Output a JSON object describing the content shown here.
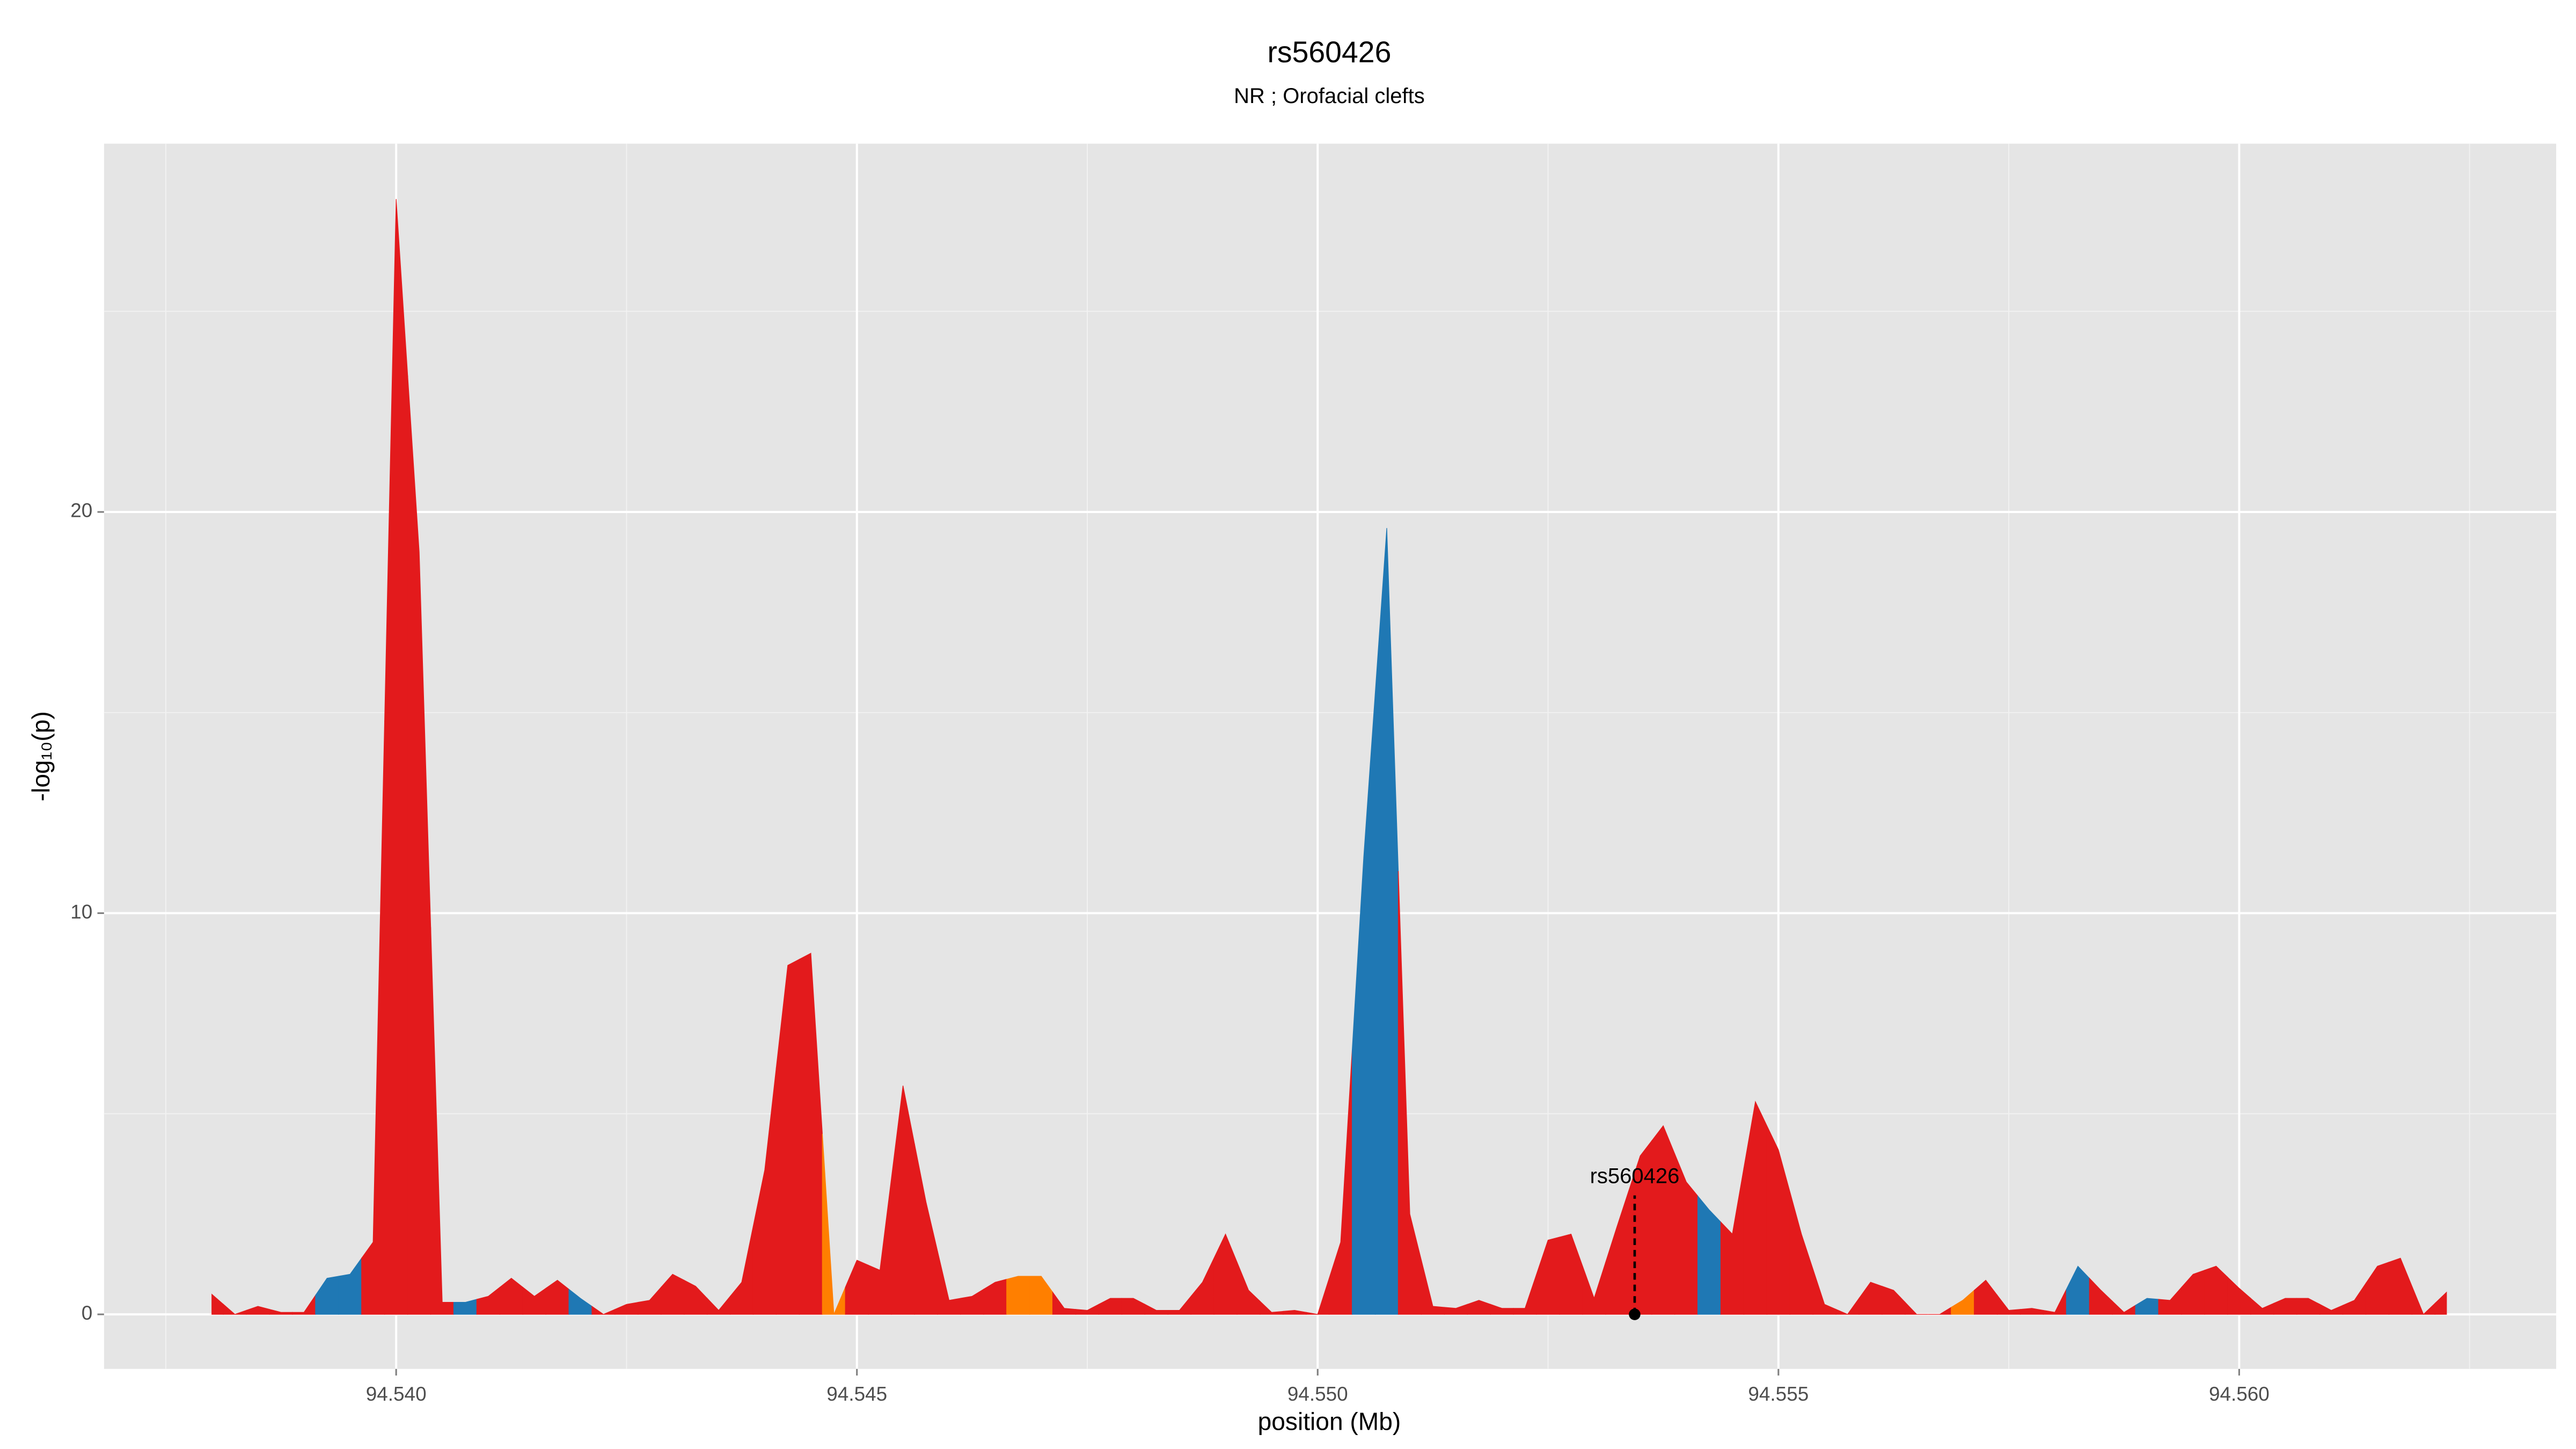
{
  "chart_data": {
    "type": "area",
    "title": "rs560426",
    "subtitle": "NR ; Orofacial clefts",
    "x_label": "position (Mb)",
    "y_label": "-log₁₀(p)",
    "x": [
      94.538,
      94.53825,
      94.5385,
      94.53875,
      94.539,
      94.53925,
      94.5395,
      94.53975,
      94.54,
      94.54025,
      94.5405,
      94.54075,
      94.541,
      94.54125,
      94.5415,
      94.54175,
      94.542,
      94.54225,
      94.5425,
      94.54275,
      94.543,
      94.54325,
      94.5435,
      94.54375,
      94.544,
      94.54425,
      94.5445,
      94.54475,
      94.545,
      94.54525,
      94.5455,
      94.54575,
      94.546,
      94.54625,
      94.5465,
      94.54675,
      94.547,
      94.54725,
      94.5475,
      94.54775,
      94.548,
      94.54825,
      94.5485,
      94.54875,
      94.549,
      94.54925,
      94.5495,
      94.54975,
      94.55,
      94.55025,
      94.5505,
      94.55075,
      94.551,
      94.55125,
      94.5515,
      94.55175,
      94.552,
      94.55225,
      94.5525,
      94.55275,
      94.553,
      94.55325,
      94.5535,
      94.55375,
      94.554,
      94.55425,
      94.5545,
      94.55475,
      94.555,
      94.55525,
      94.5555,
      94.55575,
      94.556,
      94.55625,
      94.5565,
      94.55675,
      94.557,
      94.55725,
      94.5575,
      94.55775,
      94.558,
      94.55825,
      94.5585,
      94.55875,
      94.559,
      94.55925,
      94.5595,
      94.55975,
      94.56,
      94.56025,
      94.5605,
      94.56075,
      94.561,
      94.56125,
      94.5615,
      94.56175,
      94.562,
      94.56225
    ],
    "values": [
      0.5,
      0,
      0.2,
      0.05,
      0.05,
      0.9,
      1.0,
      1.8,
      27.8,
      19.0,
      0.3,
      0.3,
      0.45,
      0.9,
      0.45,
      0.85,
      0.4,
      0,
      0.25,
      0.35,
      1.0,
      0.7,
      0.1,
      0.8,
      3.6,
      8.7,
      9.0,
      0,
      1.35,
      1.1,
      5.7,
      2.8,
      0.35,
      0.45,
      0.8,
      0.95,
      0.95,
      0.15,
      0.1,
      0.4,
      0.4,
      0.1,
      0.1,
      0.8,
      2.0,
      0.6,
      0.05,
      0.1,
      0,
      1.8,
      11.4,
      19.6,
      2.5,
      0.2,
      0.15,
      0.35,
      0.15,
      0.15,
      1.85,
      2.0,
      0.4,
      2.2,
      3.95,
      4.7,
      3.3,
      2.6,
      2.0,
      5.3,
      4.1,
      2.0,
      0.25,
      0,
      0.8,
      0.6,
      0,
      0,
      0.35,
      0.85,
      0.1,
      0.15,
      0.05,
      1.2,
      0.6,
      0.05,
      0.4,
      0.35,
      1.0,
      1.2,
      0.65,
      0.15,
      0.4,
      0.4,
      0.1,
      0.35,
      1.2,
      1.4,
      0,
      0.55
    ],
    "colors": [
      "#e31a1c",
      "#e31a1c",
      "#e31a1c",
      "#e31a1c",
      "#e31a1c",
      "#1f78b4",
      "#1f78b4",
      "#e31a1c",
      "#e31a1c",
      "#e31a1c",
      "#e31a1c",
      "#1f78b4",
      "#e31a1c",
      "#e31a1c",
      "#e31a1c",
      "#e31a1c",
      "#1f78b4",
      "#e31a1c",
      "#e31a1c",
      "#e31a1c",
      "#e31a1c",
      "#e31a1c",
      "#e31a1c",
      "#e31a1c",
      "#e31a1c",
      "#e31a1c",
      "#e31a1c",
      "#ff7f00",
      "#e31a1c",
      "#e31a1c",
      "#e31a1c",
      "#e31a1c",
      "#e31a1c",
      "#e31a1c",
      "#e31a1c",
      "#ff7f00",
      "#ff7f00",
      "#e31a1c",
      "#e31a1c",
      "#e31a1c",
      "#e31a1c",
      "#e31a1c",
      "#e31a1c",
      "#e31a1c",
      "#e31a1c",
      "#e31a1c",
      "#e31a1c",
      "#e31a1c",
      "#e31a1c",
      "#e31a1c",
      "#1f78b4",
      "#1f78b4",
      "#e31a1c",
      "#e31a1c",
      "#e31a1c",
      "#e31a1c",
      "#e31a1c",
      "#e31a1c",
      "#e31a1c",
      "#e31a1c",
      "#e31a1c",
      "#e31a1c",
      "#e31a1c",
      "#e31a1c",
      "#e31a1c",
      "#1f78b4",
      "#e31a1c",
      "#e31a1c",
      "#e31a1c",
      "#e31a1c",
      "#e31a1c",
      "#e31a1c",
      "#e31a1c",
      "#e31a1c",
      "#e31a1c",
      "#e31a1c",
      "#ff7f00",
      "#e31a1c",
      "#e31a1c",
      "#e31a1c",
      "#e31a1c",
      "#1f78b4",
      "#e31a1c",
      "#e31a1c",
      "#1f78b4",
      "#e31a1c",
      "#e31a1c",
      "#e31a1c",
      "#e31a1c",
      "#e31a1c",
      "#e31a1c",
      "#e31a1c",
      "#e31a1c",
      "#e31a1c",
      "#e31a1c",
      "#e31a1c",
      "#e31a1c",
      "#e31a1c"
    ],
    "annotation": {
      "text": "rs560426",
      "x": 94.55344,
      "y": 0
    },
    "xlim": [
      94.53683,
      94.56344
    ],
    "ylim": [
      -1.36,
      29.18
    ],
    "xticks": [
      {
        "value": 94.54,
        "label": "94.540"
      },
      {
        "value": 94.545,
        "label": "94.545"
      },
      {
        "value": 94.55,
        "label": "94.550"
      },
      {
        "value": 94.555,
        "label": "94.555"
      },
      {
        "value": 94.56,
        "label": "94.560"
      }
    ],
    "yticks": [
      0,
      10,
      20
    ],
    "grid": true
  }
}
